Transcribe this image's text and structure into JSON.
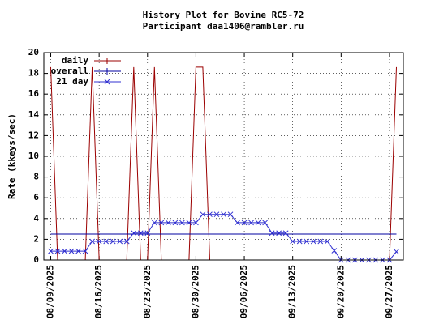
{
  "chart_data": {
    "type": "line",
    "title": "History Plot for Bovine RC5-72",
    "subtitle": "Participant daa1406@rambler.ru",
    "y_label": "Rate (kkeys/sec)",
    "x": [
      "08/09/2025",
      "08/10/2025",
      "08/11/2025",
      "08/12/2025",
      "08/13/2025",
      "08/14/2025",
      "08/15/2025",
      "08/16/2025",
      "08/17/2025",
      "08/18/2025",
      "08/19/2025",
      "08/20/2025",
      "08/21/2025",
      "08/22/2025",
      "08/23/2025",
      "08/24/2025",
      "08/25/2025",
      "08/26/2025",
      "08/27/2025",
      "08/28/2025",
      "08/29/2025",
      "08/30/2025",
      "08/31/2025",
      "09/01/2025",
      "09/02/2025",
      "09/03/2025",
      "09/04/2025",
      "09/05/2025",
      "09/06/2025",
      "09/07/2025",
      "09/08/2025",
      "09/09/2025",
      "09/10/2025",
      "09/11/2025",
      "09/12/2025",
      "09/13/2025",
      "09/14/2025",
      "09/15/2025",
      "09/16/2025",
      "09/17/2025",
      "09/18/2025",
      "09/19/2025",
      "09/20/2025",
      "09/21/2025",
      "09/22/2025",
      "09/23/2025",
      "09/24/2025",
      "09/25/2025",
      "09/26/2025",
      "09/27/2025",
      "09/28/2025"
    ],
    "series": [
      {
        "name": "daily",
        "color": "#9b0000",
        "marker": "none",
        "values": [
          18.6,
          0,
          0,
          0,
          0,
          0,
          18.6,
          0,
          0,
          0,
          0,
          0,
          18.6,
          0,
          0,
          18.6,
          0,
          0,
          0,
          0,
          0,
          18.6,
          18.6,
          0,
          0,
          0,
          0,
          0,
          0,
          0,
          0,
          0,
          0,
          0,
          0,
          0,
          0,
          0,
          0,
          0,
          0,
          0,
          0,
          0,
          0,
          0,
          0,
          0,
          0,
          0,
          18.6
        ]
      },
      {
        "name": "overall",
        "color": "#0000a0",
        "marker": "none",
        "values": [
          2.5,
          2.5,
          2.5,
          2.5,
          2.5,
          2.5,
          2.5,
          2.5,
          2.5,
          2.5,
          2.5,
          2.5,
          2.5,
          2.5,
          2.5,
          2.5,
          2.5,
          2.5,
          2.5,
          2.5,
          2.5,
          2.5,
          2.5,
          2.5,
          2.5,
          2.5,
          2.5,
          2.5,
          2.5,
          2.5,
          2.5,
          2.5,
          2.5,
          2.5,
          2.5,
          2.5,
          2.5,
          2.5,
          2.5,
          2.5,
          2.5,
          2.5,
          2.5,
          2.5,
          2.5,
          2.5,
          2.5,
          2.5,
          2.5,
          2.5,
          2.5
        ]
      },
      {
        "name": "21 day",
        "color": "#3030d0",
        "marker": "x",
        "values": [
          0.85,
          0.85,
          0.85,
          0.85,
          0.85,
          0.85,
          1.8,
          1.8,
          1.8,
          1.8,
          1.8,
          1.8,
          2.6,
          2.6,
          2.6,
          3.6,
          3.6,
          3.6,
          3.6,
          3.6,
          3.6,
          3.6,
          4.4,
          4.4,
          4.4,
          4.4,
          4.4,
          3.6,
          3.6,
          3.6,
          3.6,
          3.6,
          2.6,
          2.6,
          2.6,
          1.8,
          1.8,
          1.8,
          1.8,
          1.8,
          1.8,
          0.9,
          0,
          0,
          0,
          0,
          0,
          0,
          0,
          0,
          0.8
        ]
      }
    ],
    "xlim": [
      "08/08/2025",
      "09/29/2025"
    ],
    "xticks": [
      "08/09/2025",
      "08/16/2025",
      "08/23/2025",
      "08/30/2025",
      "09/06/2025",
      "09/13/2025",
      "09/20/2025",
      "09/27/2025"
    ],
    "ylim": [
      0,
      20
    ],
    "yticks": [
      0,
      2,
      4,
      6,
      8,
      10,
      12,
      14,
      16,
      18,
      20
    ],
    "grid": true,
    "legend": "top-left"
  }
}
